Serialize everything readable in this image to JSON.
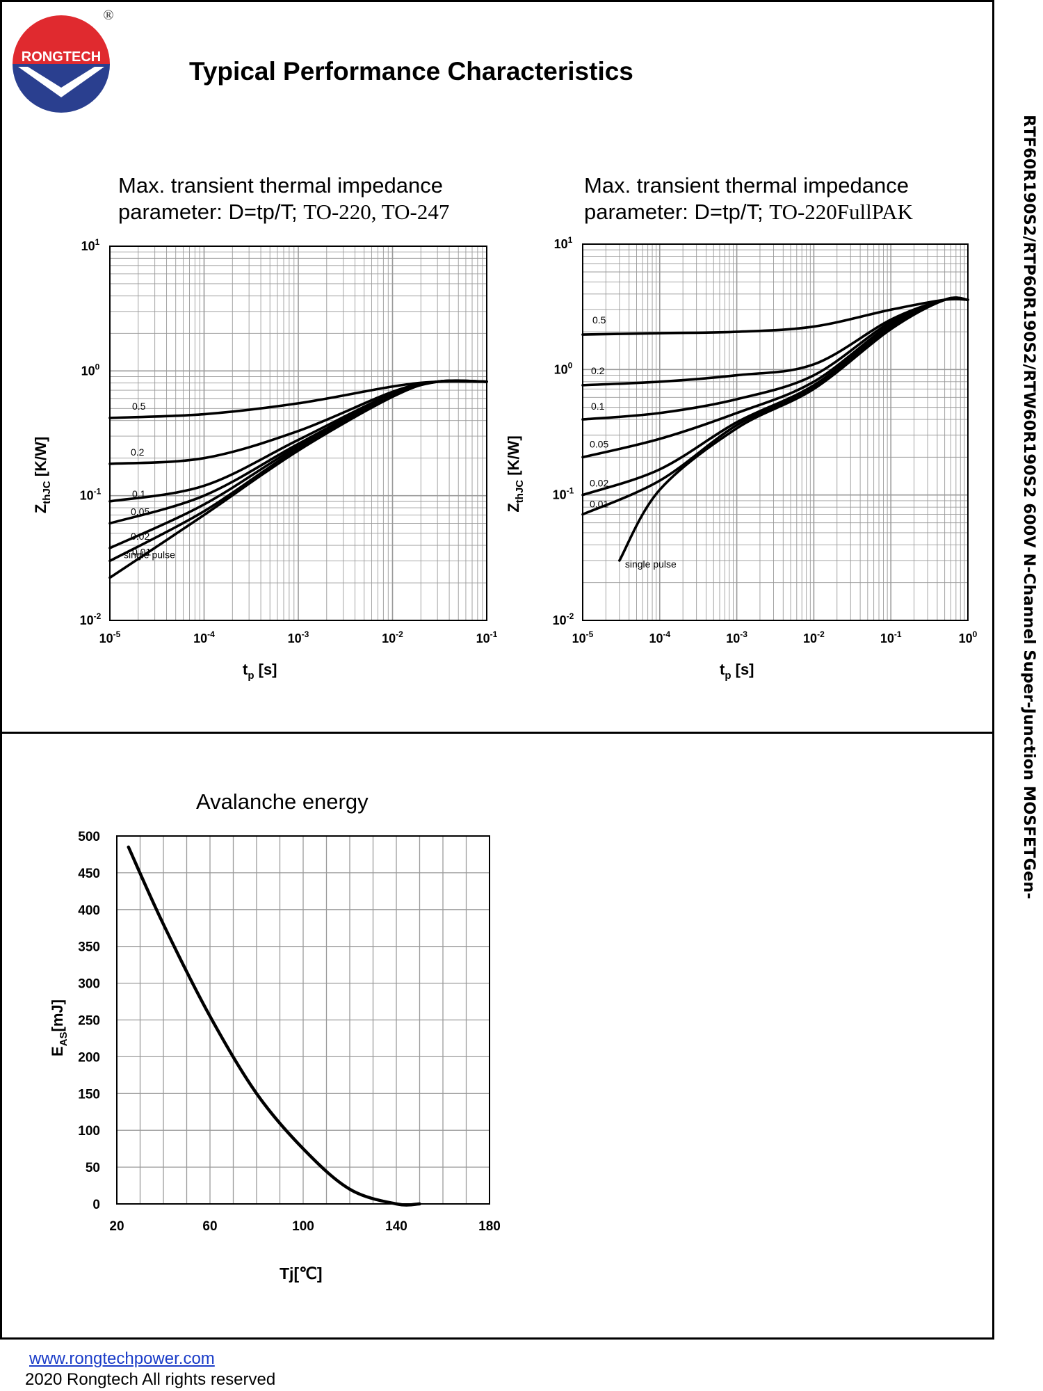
{
  "brand": {
    "name": "RONGTECH",
    "registered_mark": "®"
  },
  "page": {
    "title": "Typical Performance Characteristics",
    "side_title": "RTF60R190S2/RTP60R190S2/RTW60R190S2 600V N-Channel Super-Junction MOSFETGen-"
  },
  "footer": {
    "url": "www.rongtechpower.com",
    "copyright": "2020 Rongtech All rights reserved"
  },
  "colors": {
    "brand_red": "#e02a2f",
    "brand_blue": "#2a3f8f",
    "grid": "#9a9a9a",
    "curve": "#000000"
  },
  "chart_data": [
    {
      "type": "line",
      "title_line1": "Max. transient thermal impedance",
      "title_line2_prefix": "parameter: D=tp/T; ",
      "title_line2_package": "TO-220, TO-247",
      "xlabel": "t",
      "xlabel_sub": "p",
      "xlabel_unit": " [s]",
      "ylabel": "Z",
      "ylabel_sub": "thJC",
      "ylabel_unit": " [K/W]",
      "xscale": "log",
      "yscale": "log",
      "xlim": [
        1e-05,
        0.1
      ],
      "ylim": [
        0.01,
        10
      ],
      "x_ticks": [
        {
          "exp": -5,
          "base": "10",
          "sup": "-5"
        },
        {
          "exp": -4,
          "base": "10",
          "sup": "-4"
        },
        {
          "exp": -3,
          "base": "10",
          "sup": "-3"
        },
        {
          "exp": -2,
          "base": "10",
          "sup": "-2"
        },
        {
          "exp": -1,
          "base": "10",
          "sup": "-1"
        }
      ],
      "y_ticks": [
        {
          "exp": -2,
          "base": "10",
          "sup": "-2"
        },
        {
          "exp": -1,
          "base": "10",
          "sup": "-1"
        },
        {
          "exp": 0,
          "base": "10",
          "sup": "0"
        },
        {
          "exp": 1,
          "base": "10",
          "sup": "1"
        }
      ],
      "series": [
        {
          "name": "0.5",
          "label": "0.5",
          "x": [
            1e-05,
            0.0001,
            0.001,
            0.01,
            0.03,
            0.1
          ],
          "y": [
            0.42,
            0.45,
            0.55,
            0.75,
            0.82,
            0.82
          ]
        },
        {
          "name": "0.2",
          "label": "0.2",
          "x": [
            1e-05,
            0.0001,
            0.001,
            0.01,
            0.03,
            0.1
          ],
          "y": [
            0.18,
            0.2,
            0.33,
            0.68,
            0.82,
            0.82
          ]
        },
        {
          "name": "0.1",
          "label": "0.1",
          "x": [
            1e-05,
            0.0001,
            0.001,
            0.01,
            0.03,
            0.1
          ],
          "y": [
            0.09,
            0.12,
            0.28,
            0.66,
            0.82,
            0.82
          ]
        },
        {
          "name": "0.05",
          "label": "0.05",
          "x": [
            1e-05,
            0.0001,
            0.001,
            0.01,
            0.03,
            0.1
          ],
          "y": [
            0.06,
            0.1,
            0.26,
            0.65,
            0.82,
            0.82
          ]
        },
        {
          "name": "0.02",
          "label": "0.02",
          "x": [
            1e-05,
            0.0001,
            0.001,
            0.01,
            0.03,
            0.1
          ],
          "y": [
            0.038,
            0.085,
            0.25,
            0.64,
            0.82,
            0.82
          ]
        },
        {
          "name": "0.01",
          "label": "0.01",
          "x": [
            1e-05,
            0.0001,
            0.001,
            0.01,
            0.03,
            0.1
          ],
          "y": [
            0.03,
            0.075,
            0.24,
            0.63,
            0.82,
            0.82
          ]
        },
        {
          "name": "single pulse",
          "label": "single pulse",
          "x": [
            1e-05,
            0.0001,
            0.001,
            0.01,
            0.03,
            0.1
          ],
          "y": [
            0.022,
            0.07,
            0.23,
            0.62,
            0.82,
            0.82
          ]
        }
      ]
    },
    {
      "type": "line",
      "title_line1": "Max. transient thermal impedance",
      "title_line2_prefix": "parameter: D=tp/T; ",
      "title_line2_package": "TO-220FullPAK",
      "xlabel": "t",
      "xlabel_sub": "p",
      "xlabel_unit": " [s]",
      "ylabel": "Z",
      "ylabel_sub": "thJC",
      "ylabel_unit": " [K/W]",
      "xscale": "log",
      "yscale": "log",
      "xlim": [
        1e-05,
        1
      ],
      "ylim": [
        0.01,
        10
      ],
      "x_ticks": [
        {
          "exp": -5,
          "base": "10",
          "sup": "-5"
        },
        {
          "exp": -4,
          "base": "10",
          "sup": "-4"
        },
        {
          "exp": -3,
          "base": "10",
          "sup": "-3"
        },
        {
          "exp": -2,
          "base": "10",
          "sup": "-2"
        },
        {
          "exp": -1,
          "base": "10",
          "sup": "-1"
        },
        {
          "exp": 0,
          "base": "10",
          "sup": "0"
        }
      ],
      "y_ticks": [
        {
          "exp": -2,
          "base": "10",
          "sup": "-2"
        },
        {
          "exp": -1,
          "base": "10",
          "sup": "-1"
        },
        {
          "exp": 0,
          "base": "10",
          "sup": "0"
        },
        {
          "exp": 1,
          "base": "10",
          "sup": "1"
        }
      ],
      "series": [
        {
          "name": "0.5",
          "label": "0.5",
          "x": [
            1e-05,
            0.0001,
            0.001,
            0.01,
            0.1,
            0.5,
            1
          ],
          "y": [
            1.9,
            1.95,
            2.0,
            2.2,
            3.0,
            3.6,
            3.6
          ]
        },
        {
          "name": "0.2",
          "label": "0.2",
          "x": [
            1e-05,
            0.0001,
            0.001,
            0.01,
            0.1,
            0.5,
            1
          ],
          "y": [
            0.75,
            0.8,
            0.9,
            1.1,
            2.5,
            3.6,
            3.6
          ]
        },
        {
          "name": "0.1",
          "label": "0.1",
          "x": [
            1e-05,
            0.0001,
            0.001,
            0.01,
            0.1,
            0.5,
            1
          ],
          "y": [
            0.4,
            0.45,
            0.58,
            0.9,
            2.4,
            3.6,
            3.6
          ]
        },
        {
          "name": "0.05",
          "label": "0.05",
          "x": [
            1e-05,
            0.0001,
            0.001,
            0.01,
            0.1,
            0.5,
            1
          ],
          "y": [
            0.2,
            0.28,
            0.45,
            0.8,
            2.3,
            3.6,
            3.6
          ]
        },
        {
          "name": "0.02",
          "label": "0.02",
          "x": [
            1e-05,
            0.0001,
            0.001,
            0.01,
            0.1,
            0.5,
            1
          ],
          "y": [
            0.1,
            0.16,
            0.38,
            0.75,
            2.2,
            3.6,
            3.6
          ]
        },
        {
          "name": "0.01",
          "label": "0.01",
          "x": [
            1e-05,
            0.0001,
            0.001,
            0.01,
            0.1,
            0.5,
            1
          ],
          "y": [
            0.07,
            0.13,
            0.36,
            0.72,
            2.15,
            3.6,
            3.6
          ]
        },
        {
          "name": "single pulse",
          "label": "single pulse",
          "x": [
            3e-05,
            0.0001,
            0.001,
            0.01,
            0.1,
            0.5,
            1
          ],
          "y": [
            0.03,
            0.11,
            0.34,
            0.7,
            2.1,
            3.6,
            3.6
          ]
        }
      ]
    },
    {
      "type": "line",
      "title": "Avalanche energy",
      "xlabel": "Tj[℃]",
      "ylabel": "E",
      "ylabel_sub": "AS",
      "ylabel_unit": "[mJ]",
      "xlim": [
        20,
        180
      ],
      "ylim": [
        0,
        500
      ],
      "x_ticks": [
        "20",
        "60",
        "100",
        "140",
        "180"
      ],
      "y_ticks": [
        "0",
        "50",
        "100",
        "150",
        "200",
        "250",
        "300",
        "350",
        "400",
        "450",
        "500"
      ],
      "series": [
        {
          "name": "E_AS",
          "x": [
            25,
            40,
            60,
            80,
            100,
            120,
            140,
            150
          ],
          "y": [
            485,
            380,
            255,
            150,
            75,
            20,
            0,
            0
          ]
        }
      ]
    }
  ]
}
